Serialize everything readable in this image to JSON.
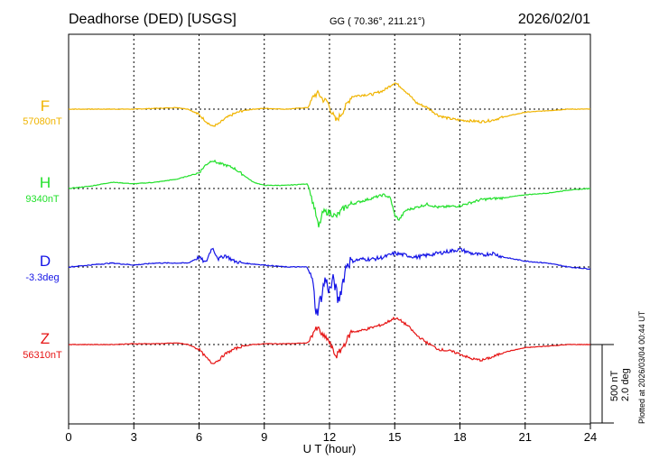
{
  "chart_data": {
    "type": "line",
    "title_left": "Deadhorse (DED)  [USGS]",
    "title_center": "GG ( 70.36°, 211.21°)",
    "title_right": "2026/02/01",
    "xlabel": "U T (hour)",
    "xlim": [
      0,
      24
    ],
    "xticks": [
      "0",
      "3",
      "6",
      "9",
      "12",
      "15",
      "18",
      "21",
      "24"
    ],
    "scale_label_1": "500 nT",
    "scale_label_2": "2.0 deg",
    "plotted_note": "Plotted at 2026/03/04 00:44 UT",
    "series": [
      {
        "name": "F",
        "baseline_label": "57080nT",
        "color": "#f0b400",
        "baseline": 57080,
        "unit": "nT",
        "x": [
          0,
          1,
          2,
          3,
          4,
          5,
          5.5,
          6,
          6.3,
          6.6,
          6.9,
          7.2,
          7.6,
          8,
          8.5,
          9,
          10,
          11,
          11.3,
          11.5,
          11.7,
          11.9,
          12.1,
          12.3,
          12.5,
          12.8,
          13,
          13.5,
          14,
          14.5,
          15,
          15.3,
          15.6,
          16,
          16.5,
          17,
          17.5,
          18,
          18.5,
          19,
          19.5,
          20,
          21,
          22,
          23,
          24
        ],
        "values": [
          0,
          0,
          0,
          0,
          5,
          10,
          0,
          -35,
          -75,
          -110,
          -95,
          -60,
          -30,
          -10,
          0,
          5,
          0,
          10,
          90,
          100,
          60,
          50,
          -20,
          -75,
          -40,
          30,
          80,
          90,
          95,
          120,
          170,
          140,
          100,
          40,
          10,
          -40,
          -60,
          -70,
          -75,
          -80,
          -70,
          -50,
          -20,
          -10,
          0,
          0
        ]
      },
      {
        "name": "H",
        "baseline_label": "9340nT",
        "color": "#22e02b",
        "baseline": 9340,
        "unit": "nT",
        "x": [
          0,
          1,
          2,
          3,
          4,
          5,
          5.5,
          6,
          6.3,
          6.6,
          6.9,
          7.2,
          7.6,
          8,
          8.5,
          9,
          10,
          11,
          11.3,
          11.5,
          11.7,
          12,
          12.3,
          12.7,
          13,
          13.5,
          14,
          14.5,
          14.8,
          15,
          15.2,
          15.5,
          16,
          16.5,
          17,
          18,
          19,
          20,
          21,
          22,
          23,
          24
        ],
        "values": [
          0,
          15,
          40,
          30,
          40,
          60,
          80,
          100,
          150,
          180,
          160,
          150,
          130,
          90,
          40,
          20,
          20,
          30,
          -120,
          -250,
          -150,
          -150,
          -180,
          -120,
          -100,
          -80,
          -60,
          -40,
          -60,
          -170,
          -200,
          -140,
          -120,
          -100,
          -120,
          -110,
          -70,
          -60,
          -40,
          -30,
          -10,
          0
        ]
      },
      {
        "name": "D",
        "baseline_label": "-3.3deg",
        "color": "#1414e6",
        "baseline": -3.3,
        "unit": "deg",
        "x": [
          0,
          1,
          2,
          3,
          4,
          5,
          5.5,
          6,
          6.3,
          6.6,
          6.9,
          7.2,
          7.6,
          8,
          9,
          10,
          11,
          11.2,
          11.4,
          11.6,
          11.8,
          12,
          12.2,
          12.4,
          12.6,
          12.8,
          13,
          13.5,
          14,
          14.5,
          15,
          15.5,
          16,
          16.5,
          17,
          17.5,
          18,
          18.5,
          19,
          19.5,
          20,
          21,
          22,
          23,
          24
        ],
        "values": [
          0,
          0.05,
          0.1,
          0.05,
          0.1,
          0.1,
          0.1,
          0.25,
          0.1,
          0.5,
          0.2,
          0.3,
          0.15,
          0.1,
          0.05,
          0,
          0,
          -0.3,
          -1.2,
          -0.8,
          -0.3,
          -0.6,
          -0.3,
          -0.9,
          -0.4,
          0.1,
          0.15,
          0.2,
          0.2,
          0.25,
          0.35,
          0.3,
          0.25,
          0.3,
          0.35,
          0.4,
          0.45,
          0.35,
          0.3,
          0.35,
          0.25,
          0.15,
          0.1,
          0,
          -0.05
        ]
      },
      {
        "name": "Z",
        "baseline_label": "56310nT",
        "color": "#e61414",
        "baseline": 56310,
        "unit": "nT",
        "x": [
          0,
          1,
          2,
          3,
          4,
          5,
          5.5,
          6,
          6.3,
          6.6,
          6.9,
          7.2,
          7.6,
          8,
          8.5,
          9,
          10,
          11,
          11.3,
          11.5,
          11.7,
          11.9,
          12.1,
          12.3,
          12.5,
          12.8,
          13,
          13.5,
          14,
          14.5,
          15,
          15.3,
          15.6,
          16,
          16.5,
          17,
          17.5,
          18,
          18.5,
          19,
          19.5,
          20,
          21,
          22,
          23,
          24
        ],
        "values": [
          0,
          0,
          0,
          5,
          5,
          10,
          0,
          -30,
          -80,
          -120,
          -100,
          -60,
          -30,
          -10,
          0,
          5,
          5,
          10,
          90,
          100,
          50,
          40,
          -20,
          -75,
          -40,
          30,
          80,
          90,
          110,
          130,
          170,
          150,
          120,
          60,
          10,
          -30,
          -40,
          -60,
          -90,
          -100,
          -80,
          -50,
          -20,
          -10,
          0,
          0
        ]
      }
    ]
  }
}
